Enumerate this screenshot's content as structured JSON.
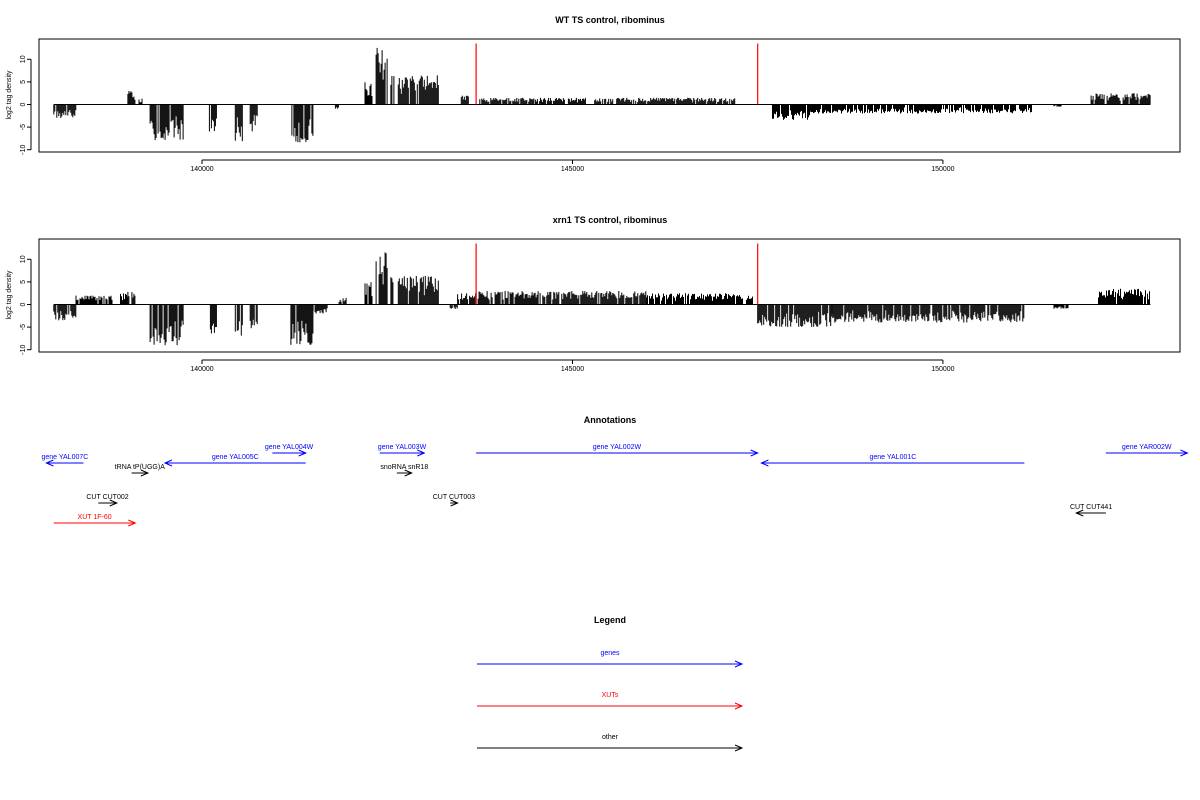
{
  "chart_data": [
    {
      "type": "bar",
      "title": "WT TS control, ribominus",
      "xlabel": "",
      "ylabel": "log2 tag density",
      "xlim": [
        137800,
        153200
      ],
      "ylim": [
        -10.5,
        14.5
      ],
      "xticks": [
        140000,
        145000,
        150000
      ],
      "yticks": [
        -10,
        -5,
        0,
        5,
        10
      ],
      "tick_labels": {
        "140000": "140000",
        "145000": "145000",
        "150000": "150000",
        "-10": "-10",
        "-5": "-5",
        "0": "0",
        "5": "5",
        "10": "10"
      },
      "baseline_range": [
        138000,
        152800
      ],
      "markers": [
        {
          "x": 143700,
          "color": "#ff0000"
        },
        {
          "x": 147500,
          "color": "#ff0000"
        }
      ],
      "marker_top": 13.5,
      "series": [
        {
          "values": [
            [
              138000,
              138300,
              -3.0
            ],
            [
              139300,
              139750,
              -8.0
            ],
            [
              140100,
              140200,
              -6.0
            ],
            [
              140450,
              140550,
              -8.5
            ],
            [
              140650,
              140750,
              -6.0
            ],
            [
              141200,
              141500,
              -8.5
            ],
            [
              141800,
              141850,
              -1.0
            ],
            [
              139000,
              139100,
              3.0
            ],
            [
              139150,
              139200,
              1.5
            ],
            [
              142200,
              142300,
              5.0
            ],
            [
              142350,
              142500,
              13.0
            ],
            [
              142550,
              142600,
              7.0
            ],
            [
              142650,
              143200,
              6.5
            ],
            [
              143500,
              143600,
              2.0
            ],
            [
              143750,
              144500,
              1.5
            ],
            [
              144500,
              145200,
              1.5
            ],
            [
              145300,
              147200,
              1.5
            ],
            [
              147700,
              148200,
              -3.5
            ],
            [
              148200,
              151200,
              -2.0
            ],
            [
              151500,
              151600,
              -0.5
            ],
            [
              152000,
              152800,
              2.5
            ]
          ]
        }
      ]
    },
    {
      "type": "bar",
      "title": "xrn1 TS control, ribominus",
      "xlabel": "",
      "ylabel": "log2 tag density",
      "xlim": [
        137800,
        153200
      ],
      "ylim": [
        -10.5,
        14.5
      ],
      "xticks": [
        140000,
        145000,
        150000
      ],
      "yticks": [
        -10,
        -5,
        0,
        5,
        10
      ],
      "tick_labels": {
        "140000": "140000",
        "145000": "145000",
        "150000": "150000",
        "-10": "-10",
        "-5": "-5",
        "0": "0",
        "5": "5",
        "10": "10"
      },
      "baseline_range": [
        138000,
        152800
      ],
      "markers": [
        {
          "x": 143700,
          "color": "#ff0000"
        },
        {
          "x": 147500,
          "color": "#ff0000"
        }
      ],
      "marker_top": 13.5,
      "series": [
        {
          "values": [
            [
              138000,
              138300,
              -3.5
            ],
            [
              138300,
              138800,
              2.0
            ],
            [
              138900,
              139000,
              2.5
            ],
            [
              139000,
              139100,
              3.0
            ],
            [
              139300,
              139750,
              -9.0
            ],
            [
              140100,
              140200,
              -6.5
            ],
            [
              140450,
              140550,
              -9.0
            ],
            [
              140650,
              140750,
              -7.0
            ],
            [
              141200,
              141500,
              -9.0
            ],
            [
              141500,
              141700,
              -2.0
            ],
            [
              141850,
              141950,
              1.5
            ],
            [
              142200,
              142300,
              5.0
            ],
            [
              142350,
              142500,
              12.5
            ],
            [
              142550,
              142600,
              7.0
            ],
            [
              142650,
              143200,
              6.5
            ],
            [
              143350,
              143450,
              -1.0
            ],
            [
              143450,
              143700,
              2.5
            ],
            [
              143700,
              144600,
              3.0
            ],
            [
              144600,
              146000,
              3.0
            ],
            [
              146000,
              147450,
              2.5
            ],
            [
              147500,
              148500,
              -5.0
            ],
            [
              148500,
              151100,
              -4.0
            ],
            [
              151500,
              151700,
              -1.0
            ],
            [
              152100,
              152800,
              3.5
            ]
          ]
        }
      ]
    }
  ],
  "annotations": {
    "title": "Annotations",
    "xlim": [
      137800,
      153200
    ],
    "items": [
      {
        "label": "gene YAL007C",
        "color": "#0000ff",
        "start": 137900,
        "end": 138400,
        "dir": "left",
        "row": 2
      },
      {
        "label": "gene YAL005C",
        "color": "#0000ff",
        "start": 139500,
        "end": 141400,
        "dir": "left",
        "row": 2
      },
      {
        "label": "gene YAL004W",
        "color": "#0000ff",
        "start": 140950,
        "end": 141400,
        "dir": "right",
        "row": 1
      },
      {
        "label": "tRNA tP(UGG)A",
        "color": "#000000",
        "start": 139050,
        "end": 139270,
        "dir": "right",
        "row": 3
      },
      {
        "label": "gene YAL003W",
        "color": "#0000ff",
        "start": 142400,
        "end": 143000,
        "dir": "right",
        "row": 1
      },
      {
        "label": "snoRNA snR18",
        "color": "#000000",
        "start": 142630,
        "end": 142830,
        "dir": "right",
        "row": 3
      },
      {
        "label": "gene YAL002W",
        "color": "#0000ff",
        "start": 143700,
        "end": 147500,
        "dir": "right",
        "row": 1
      },
      {
        "label": "gene YAL001C",
        "color": "#0000ff",
        "start": 147550,
        "end": 151100,
        "dir": "left",
        "row": 2
      },
      {
        "label": "gene YAR002W",
        "color": "#0000ff",
        "start": 152200,
        "end": 153300,
        "dir": "right",
        "row": 1
      },
      {
        "label": "CUT CUT002",
        "color": "#000000",
        "start": 138600,
        "end": 138850,
        "dir": "right",
        "row": 6
      },
      {
        "label": "CUT CUT003",
        "color": "#000000",
        "start": 143350,
        "end": 143450,
        "dir": "right",
        "row": 6
      },
      {
        "label": "CUT CUT441",
        "color": "#000000",
        "start": 151800,
        "end": 152200,
        "dir": "left",
        "row": 7
      },
      {
        "label": "XUT 1F-60",
        "color": "#ff0000",
        "start": 138000,
        "end": 139100,
        "dir": "right",
        "row": 8
      }
    ]
  },
  "legend": {
    "title": "Legend",
    "items": [
      {
        "label": "genes",
        "color": "#0000ff"
      },
      {
        "label": "XUTs",
        "color": "#ff0000"
      },
      {
        "label": "other",
        "color": "#000000"
      }
    ]
  }
}
